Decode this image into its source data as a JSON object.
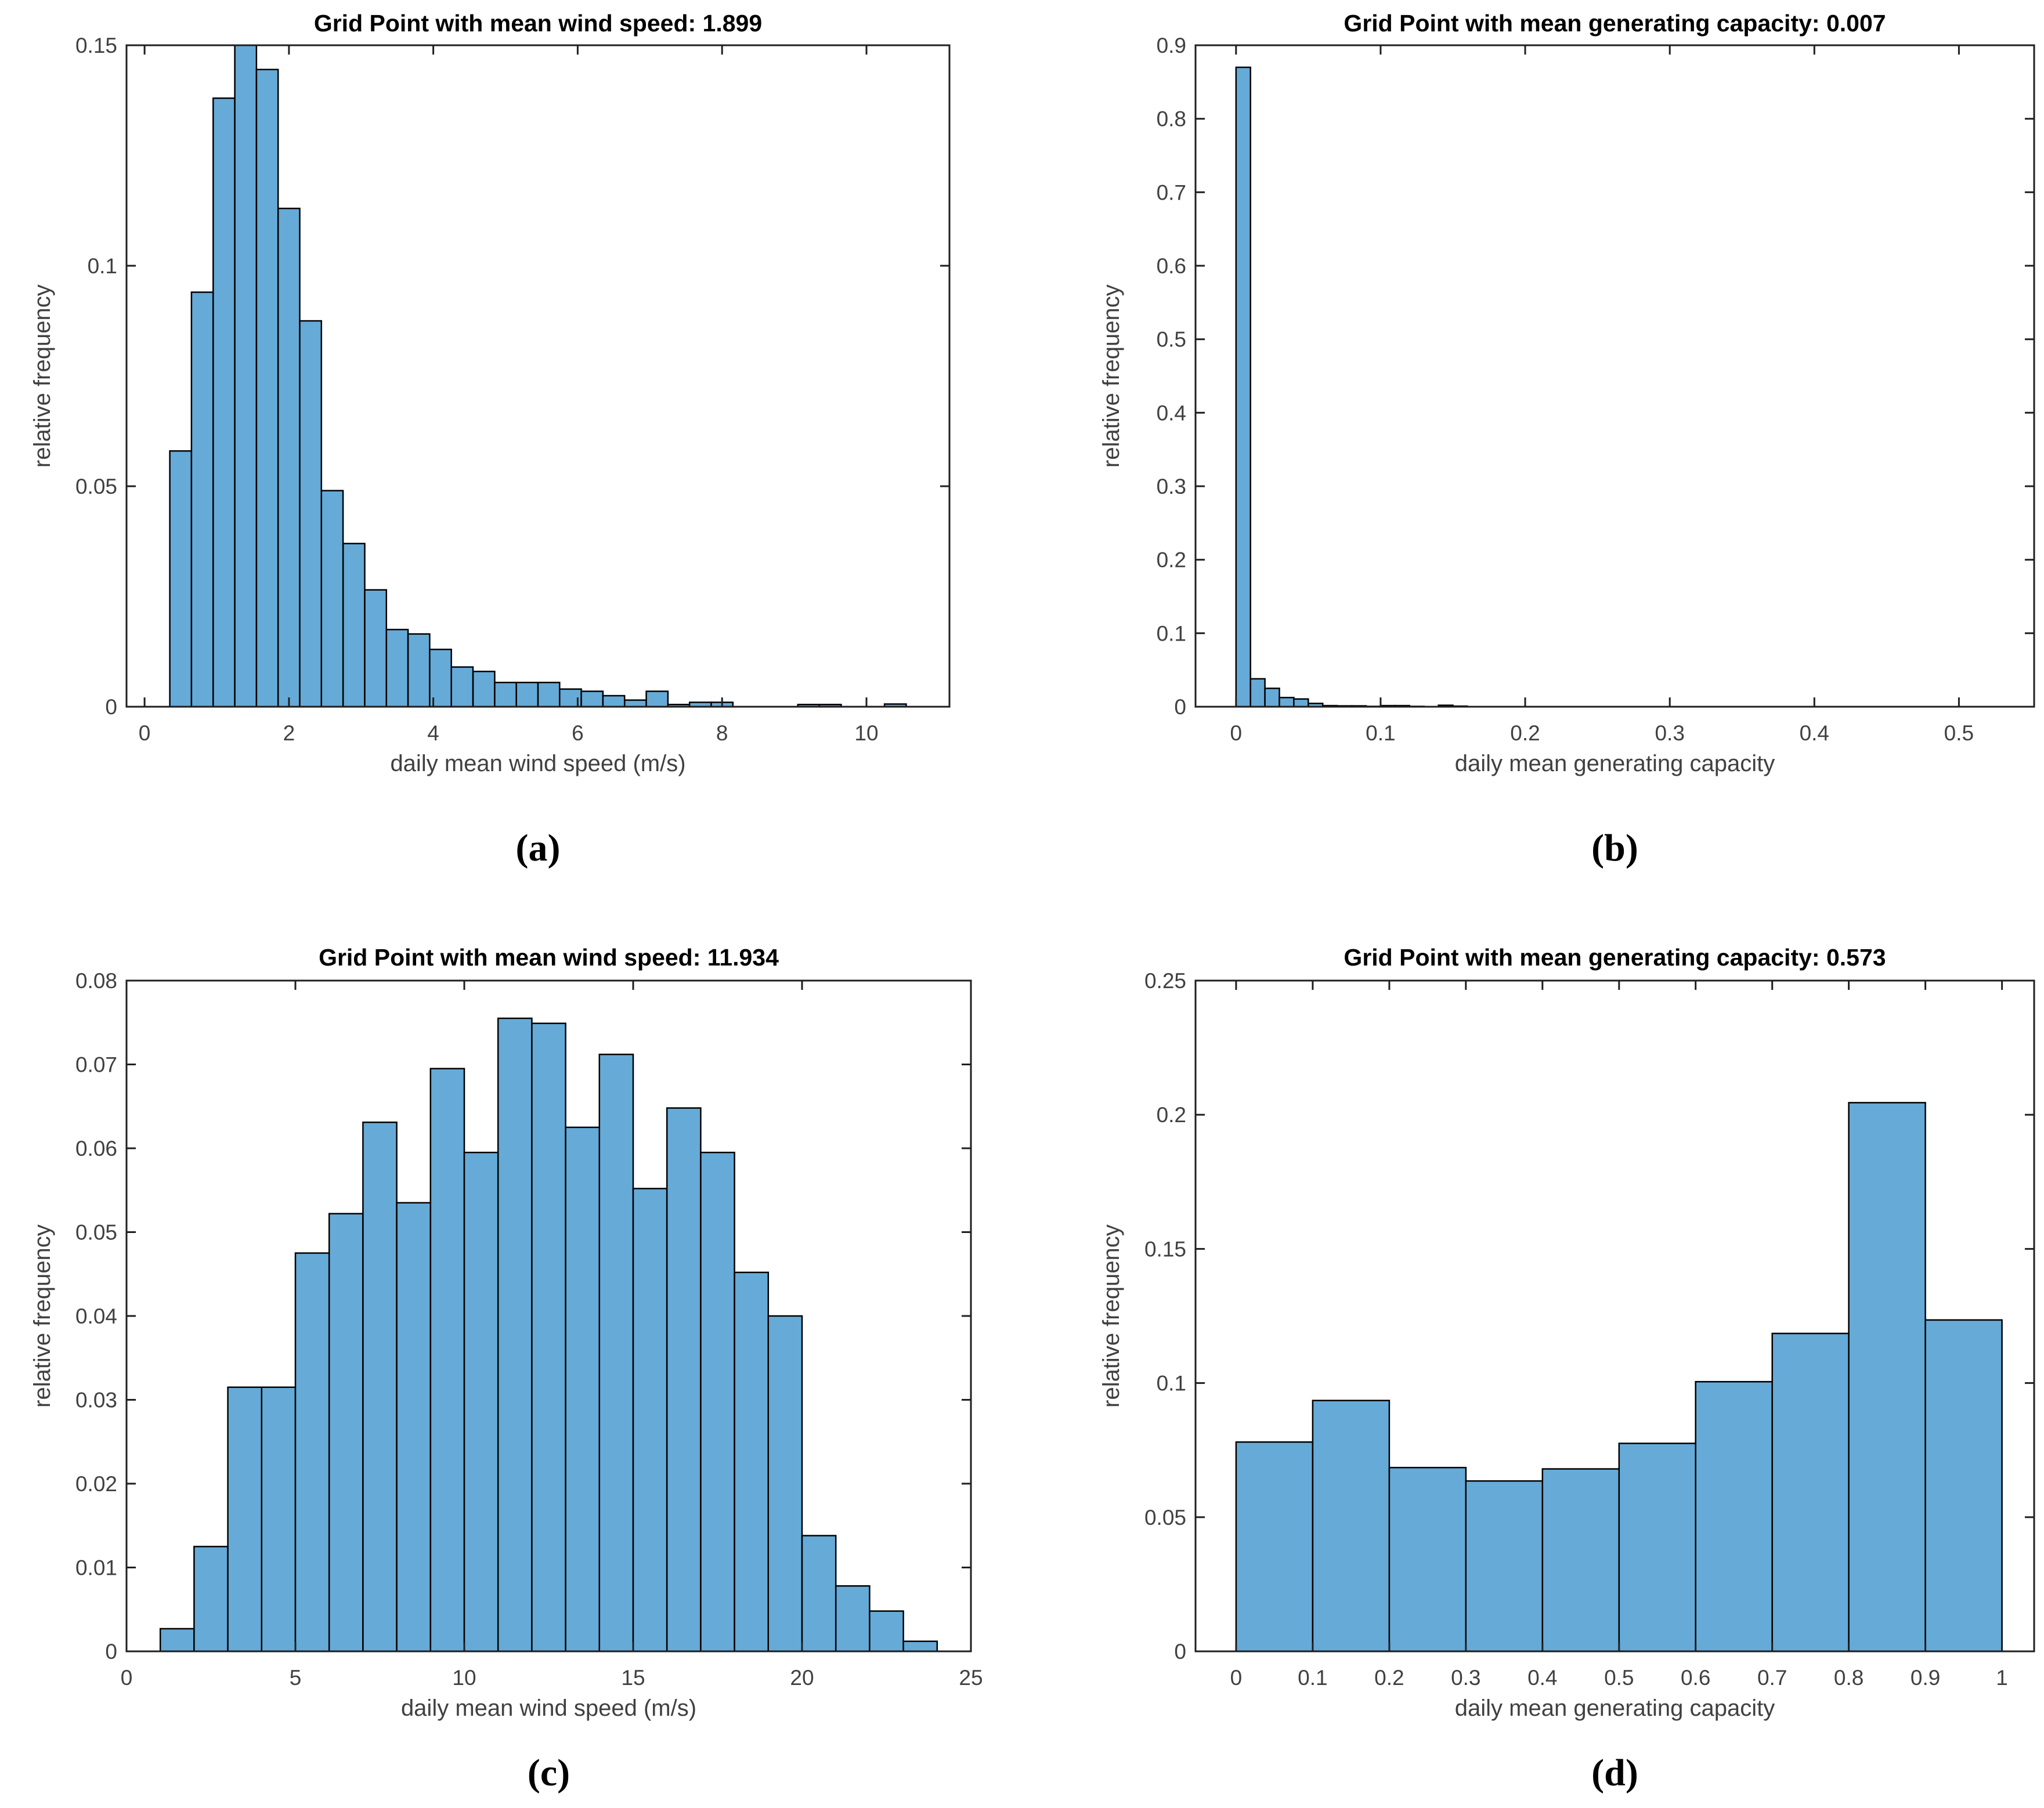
{
  "figure": {
    "background": "#ffffff",
    "colors": {
      "bar_fill": "#66aad7",
      "bar_edge": "#000000",
      "axis_line": "#1f1f1f",
      "tick_label": "#404040",
      "title_text": "#000000",
      "axis_label_text": "#404040"
    }
  },
  "chart_data": [
    {
      "id": "a",
      "letter": "(a)",
      "type": "bar",
      "title": "Grid Point with mean wind speed: 1.899",
      "xlabel": "daily mean wind speed (m/s)",
      "ylabel": "relative frequency",
      "bin_start": 0.35,
      "bin_width": 0.3,
      "values": [
        0.058,
        0.094,
        0.138,
        0.15,
        0.1445,
        0.113,
        0.0875,
        0.049,
        0.037,
        0.0265,
        0.0175,
        0.0165,
        0.013,
        0.009,
        0.008,
        0.0055,
        0.0055,
        0.0055,
        0.004,
        0.0035,
        0.0025,
        0.0015,
        0.0035,
        0.0005,
        0.001,
        0.001,
        0,
        0,
        0,
        0.0005,
        0.0005,
        0,
        0,
        0.0006
      ],
      "xlim": [
        -0.25,
        11.15
      ],
      "ylim": [
        0,
        0.15
      ],
      "xticks": [
        0,
        2,
        4,
        6,
        8,
        10
      ],
      "yticks": [
        0,
        0.05,
        0.1,
        0.15
      ],
      "grid": false,
      "legend": null
    },
    {
      "id": "b",
      "letter": "(b)",
      "type": "bar",
      "title": "Grid Point with mean generating capacity: 0.007",
      "xlabel": "daily mean generating capacity",
      "ylabel": "relative frequency",
      "bin_start": 0,
      "bin_width": 0.01,
      "values": [
        0.87,
        0.038,
        0.025,
        0.0125,
        0.0105,
        0.0045,
        0.0015,
        0.0012,
        0.0012,
        0.0005,
        0.0015,
        0.0015,
        0.0005,
        0,
        0.002,
        0.0008
      ],
      "xlim": [
        -0.028,
        0.552
      ],
      "ylim": [
        0,
        0.9
      ],
      "xticks": [
        0,
        0.1,
        0.2,
        0.3,
        0.4,
        0.5
      ],
      "yticks": [
        0,
        0.1,
        0.2,
        0.3,
        0.4,
        0.5,
        0.6,
        0.7,
        0.8,
        0.9
      ],
      "grid": false,
      "legend": null
    },
    {
      "id": "c",
      "letter": "(c)",
      "type": "bar",
      "title": "Grid Point with mean wind speed: 11.934",
      "xlabel": "daily mean wind speed (m/s)",
      "ylabel": "relative frequency",
      "bin_start": 1,
      "bin_width": 1,
      "values": [
        0.0027,
        0.0125,
        0.0315,
        0.0315,
        0.0475,
        0.0522,
        0.0631,
        0.0535,
        0.0695,
        0.0595,
        0.0755,
        0.0749,
        0.0625,
        0.0712,
        0.0552,
        0.0648,
        0.0595,
        0.0452,
        0.04,
        0.0138,
        0.0078,
        0.0048,
        0.0012
      ],
      "xlim": [
        0,
        25
      ],
      "ylim": [
        0,
        0.08
      ],
      "xticks": [
        0,
        5,
        10,
        15,
        20,
        25
      ],
      "yticks": [
        0,
        0.01,
        0.02,
        0.03,
        0.04,
        0.05,
        0.06,
        0.07,
        0.08
      ],
      "grid": false,
      "legend": null
    },
    {
      "id": "d",
      "letter": "(d)",
      "type": "bar",
      "title": "Grid Point with mean generating capacity: 0.573",
      "xlabel": "daily mean generating capacity",
      "ylabel": "relative frequency",
      "bin_start": 0,
      "bin_width": 0.1,
      "values": [
        0.078,
        0.0935,
        0.0685,
        0.0635,
        0.068,
        0.0775,
        0.1005,
        0.1185,
        0.2045,
        0.1235
      ],
      "xlim": [
        -0.053,
        1.042
      ],
      "ylim": [
        0,
        0.25
      ],
      "xticks": [
        0,
        0.1,
        0.2,
        0.3,
        0.4,
        0.5,
        0.6,
        0.7,
        0.8,
        0.9,
        1
      ],
      "yticks": [
        0,
        0.05,
        0.1,
        0.15,
        0.2,
        0.25
      ],
      "grid": false,
      "legend": null
    }
  ]
}
